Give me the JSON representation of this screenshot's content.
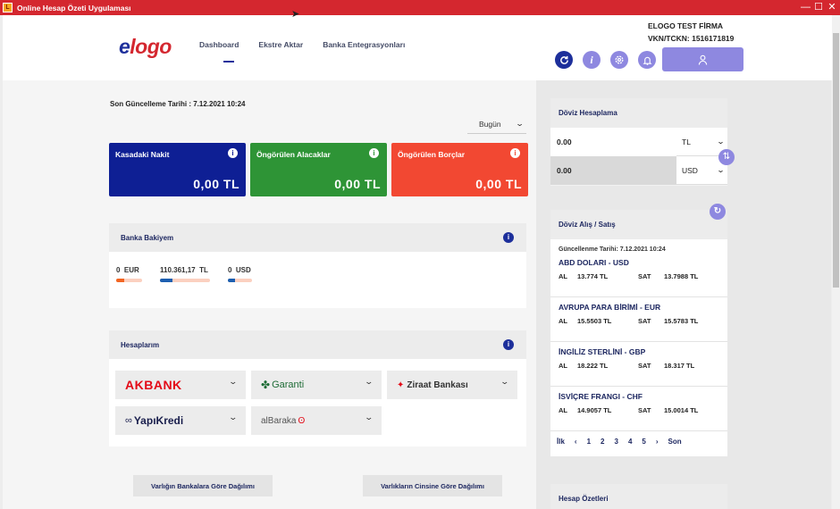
{
  "window": {
    "title": "Online Hesap Özeti Uygulaması",
    "app_icon": "L",
    "min": "—",
    "max": "☐",
    "close": "✕"
  },
  "header": {
    "logo": {
      "first": "e",
      "rest": "logo"
    },
    "nav": [
      "Dashboard",
      "Ekstre Aktar",
      "Banka Entegrasyonları"
    ],
    "firm_name": "ELOGO TEST FİRMA",
    "tax_id": "VKN/TCKN: 1516171819",
    "icons": [
      "refresh-icon",
      "info-icon",
      "settings-icon",
      "bell-icon",
      "user-icon"
    ]
  },
  "left": {
    "last_update": "Son Güncelleme Tarihi : 7.12.2021 10:24",
    "period": "Bugün",
    "cards": [
      {
        "title": "Kasadaki Nakit",
        "value": "0,00 TL",
        "color": "#0e1f94"
      },
      {
        "title": "Öngörülen Alacaklar",
        "value": "0,00 TL",
        "color": "#2e9436"
      },
      {
        "title": "Öngörülen Borçlar",
        "value": "0,00 TL",
        "color": "#f24832"
      }
    ],
    "bank_balance": {
      "title": "Banka Bakiyem",
      "items": [
        {
          "value": "0",
          "currency": "EUR",
          "bar_fill": 0.3,
          "bar_color": "#f26522"
        },
        {
          "value": "110.361,17",
          "currency": "TL",
          "bar_fill": 0.25,
          "bar_color": "#1d5fb0"
        },
        {
          "value": "0",
          "currency": "USD",
          "bar_fill": 0.3,
          "bar_color": "#1d5fb0"
        }
      ]
    },
    "accounts": {
      "title": "Hesaplarım",
      "banks": [
        "AKBANK",
        "Garanti",
        "Ziraat Bankası",
        "YapıKredi",
        "alBaraka"
      ]
    },
    "buttons": {
      "by_bank": "Varlığın Bankalara Göre Dağılımı",
      "by_type": "Varlıkların Cinsine Göre Dağılımı"
    }
  },
  "right": {
    "converter": {
      "title": "Döviz Hesaplama",
      "from_amount": "0.00",
      "from_currency": "TL",
      "to_amount": "0.00",
      "to_currency": "USD"
    },
    "rates": {
      "title": "Döviz Alış / Satış",
      "updated": "Güncellenme Tarihi: 7.12.2021 10:24",
      "buy_label": "AL",
      "sell_label": "SAT",
      "items": [
        {
          "name": "ABD DOLARI - USD",
          "buy": "13.774  TL",
          "sell": "13.7988  TL"
        },
        {
          "name": "AVRUPA PARA BİRİMİ - EUR",
          "buy": "15.5503  TL",
          "sell": "15.5783  TL"
        },
        {
          "name": "İNGİLİZ STERLİNİ - GBP",
          "buy": "18.222  TL",
          "sell": "18.317  TL"
        },
        {
          "name": "İSVİÇRE FRANGI - CHF",
          "buy": "14.9057  TL",
          "sell": "15.0014  TL"
        }
      ],
      "pager": [
        "İlk",
        "‹",
        "1",
        "2",
        "3",
        "4",
        "5",
        "›",
        "Son"
      ]
    },
    "summary_title": "Hesap Özetleri"
  }
}
